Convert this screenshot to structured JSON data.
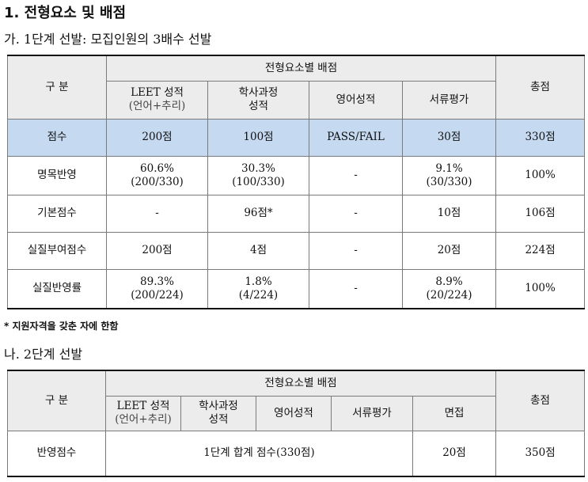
{
  "heading": "1. 전형요소 및 배점",
  "section1": {
    "title": "가. 1단계 선발: 모집인원의 3배수 선발",
    "header": {
      "group": "구 분",
      "category": "전형요소별 배점",
      "leet": "LEET 성적",
      "leet_sub": "(언어+추리)",
      "gpa_line1": "학사과정",
      "gpa_line2": "성적",
      "english": "영어성적",
      "docs": "서류평가",
      "total": "총점"
    },
    "rows": [
      {
        "label": "점수",
        "leet": [
          "200점"
        ],
        "gpa": [
          "100점"
        ],
        "english": "PASS/FAIL",
        "docs": [
          "30점"
        ],
        "total": "330점"
      },
      {
        "label": "명목반영",
        "leet": [
          "60.6%",
          "(200/330)"
        ],
        "gpa": [
          "30.3%",
          "(100/330)"
        ],
        "english": "-",
        "docs": [
          "9.1%",
          "(30/330)"
        ],
        "total": "100%"
      },
      {
        "label": "기본점수",
        "leet": [
          "-"
        ],
        "gpa": [
          "96점*"
        ],
        "english": "-",
        "docs": [
          "10점"
        ],
        "total": "106점"
      },
      {
        "label": "실질부여점수",
        "leet": [
          "200점"
        ],
        "gpa": [
          "4점"
        ],
        "english": "-",
        "docs": [
          "20점"
        ],
        "total": "224점"
      },
      {
        "label": "실질반영률",
        "leet": [
          "89.3%",
          "(200/224)"
        ],
        "gpa": [
          "1.8%",
          "(4/224)"
        ],
        "english": "-",
        "docs": [
          "8.9%",
          "(20/224)"
        ],
        "total": "100%"
      }
    ],
    "note": "* 지원자격을 갖춘 자에 한함"
  },
  "section2": {
    "title": "나. 2단계 선발",
    "header": {
      "group": "구 분",
      "category": "전형요소별 배점",
      "leet": "LEET 성적",
      "leet_sub": "(언어+추리)",
      "gpa_line1": "학사과정",
      "gpa_line2": "성적",
      "english": "영어성적",
      "docs": "서류평가",
      "interview": "면접",
      "total": "총점"
    },
    "row": {
      "label": "반영점수",
      "merged": "1단계 합계 점수(330점)",
      "interview": "20점",
      "total": "350점"
    }
  },
  "colors": {
    "header_bg": "#ececec",
    "highlight_row_bg": "#c5d9f1",
    "rule": "#111111"
  }
}
